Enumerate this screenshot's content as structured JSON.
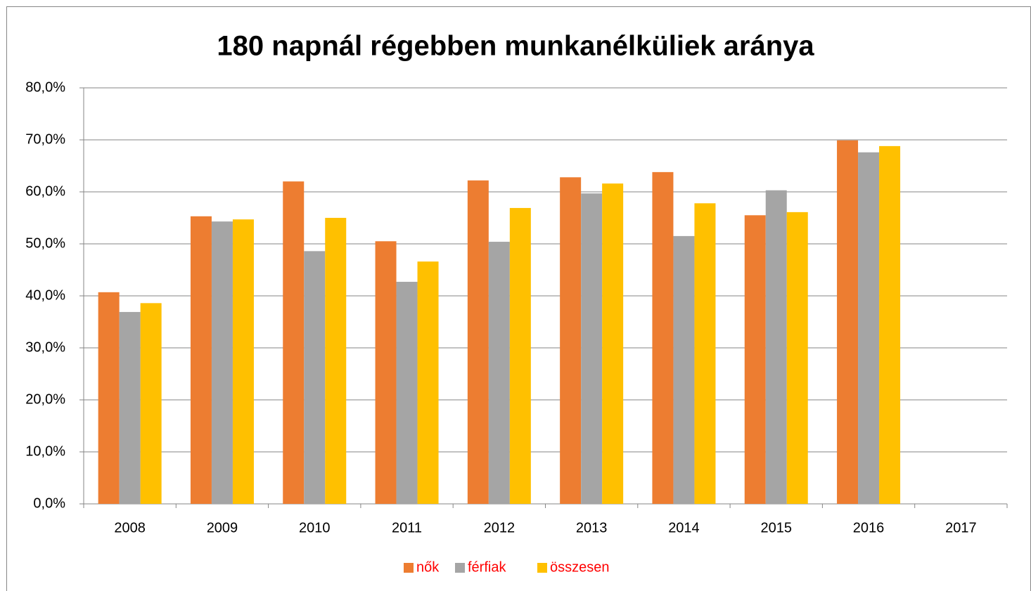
{
  "chart_data": {
    "type": "bar",
    "title": "180 napnál régebben munkanélküliek aránya",
    "categories": [
      "2008",
      "2009",
      "2010",
      "2011",
      "2012",
      "2013",
      "2014",
      "2015",
      "2016",
      "2017"
    ],
    "series": [
      {
        "name": "nők",
        "color": "#ed7d31",
        "values": [
          40.7,
          55.3,
          62.0,
          50.5,
          62.2,
          62.8,
          63.8,
          55.5,
          69.9,
          null
        ]
      },
      {
        "name": "férfiak",
        "color": "#a5a5a5",
        "values": [
          36.9,
          54.3,
          48.6,
          42.7,
          50.4,
          59.7,
          51.5,
          60.3,
          67.6,
          null
        ]
      },
      {
        "name": "összesen",
        "color": "#ffc000",
        "values": [
          38.6,
          54.7,
          55.0,
          46.6,
          56.9,
          61.6,
          57.8,
          56.1,
          68.8,
          null
        ]
      }
    ],
    "ylim": [
      0,
      80
    ],
    "yticks": [
      {
        "value": 0,
        "label": "0,0%"
      },
      {
        "value": 10,
        "label": "10,0%"
      },
      {
        "value": 20,
        "label": "20,0%"
      },
      {
        "value": 30,
        "label": "30,0%"
      },
      {
        "value": 40,
        "label": "40,0%"
      },
      {
        "value": 50,
        "label": "50,0%"
      },
      {
        "value": 60,
        "label": "60,0%"
      },
      {
        "value": 70,
        "label": "70,0%"
      },
      {
        "value": 80,
        "label": "80,0%"
      }
    ],
    "grid": true,
    "legend": "bottom"
  }
}
